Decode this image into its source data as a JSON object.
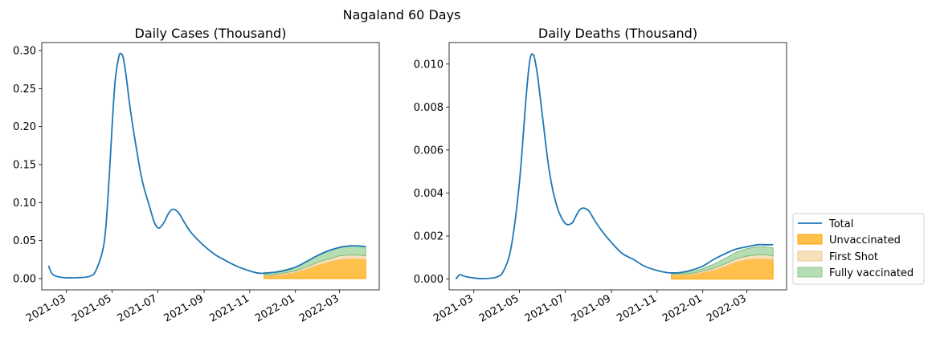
{
  "suptitle": "Nagaland 60 Days",
  "legend": {
    "placement": "right",
    "entries": [
      {
        "label": "Total",
        "kind": "line",
        "color": "#1f77b4"
      },
      {
        "label": "Unvaccinated",
        "kind": "patch",
        "color": "#ffa500",
        "alpha": 0.7
      },
      {
        "label": "First Shot",
        "kind": "patch",
        "color": "#f5deb3",
        "alpha": 0.9
      },
      {
        "label": "Fully vaccinated",
        "kind": "patch",
        "color": "#2ca02c",
        "alpha": 0.35
      }
    ]
  },
  "chart_data": [
    {
      "type": "area",
      "title": "Daily Cases (Thousand)",
      "xlabel": "",
      "ylabel": "",
      "grid": false,
      "x_ticks": [
        "2021-03",
        "2021-05",
        "2021-07",
        "2021-09",
        "2021-11",
        "2022-01",
        "2022-03"
      ],
      "y_ticks": [
        "0.00",
        "0.05",
        "0.10",
        "0.15",
        "0.20",
        "0.25",
        "0.30"
      ],
      "xlim": [
        "2021-01-27",
        "2022-04-23"
      ],
      "ylim": [
        -0.0148,
        0.3106
      ],
      "series": [
        {
          "name": "Total",
          "type": "line",
          "x": [
            "2021-02-05",
            "2021-02-10",
            "2021-02-20",
            "2021-03-10",
            "2021-04-01",
            "2021-04-10",
            "2021-04-20",
            "2021-04-25",
            "2021-05-01",
            "2021-05-05",
            "2021-05-10",
            "2021-05-13",
            "2021-05-16",
            "2021-05-20",
            "2021-05-25",
            "2021-06-01",
            "2021-06-10",
            "2021-06-20",
            "2021-06-26",
            "2021-07-01",
            "2021-07-05",
            "2021-07-10",
            "2021-07-15",
            "2021-07-20",
            "2021-07-25",
            "2021-07-30",
            "2021-08-05",
            "2021-08-15",
            "2021-09-01",
            "2021-09-15",
            "2021-10-01",
            "2021-10-15",
            "2021-11-01",
            "2021-11-15",
            "2021-12-01",
            "2021-12-15",
            "2022-01-01",
            "2022-01-15",
            "2022-02-01",
            "2022-02-15",
            "2022-03-01",
            "2022-03-15",
            "2022-03-25",
            "2022-04-05"
          ],
          "values": [
            0.017,
            0.006,
            0.002,
            0.001,
            0.003,
            0.012,
            0.045,
            0.1,
            0.2,
            0.26,
            0.292,
            0.296,
            0.29,
            0.265,
            0.225,
            0.18,
            0.13,
            0.095,
            0.075,
            0.067,
            0.068,
            0.075,
            0.085,
            0.091,
            0.09,
            0.085,
            0.075,
            0.06,
            0.043,
            0.032,
            0.023,
            0.016,
            0.01,
            0.007,
            0.008,
            0.01,
            0.015,
            0.022,
            0.031,
            0.037,
            0.041,
            0.043,
            0.043,
            0.042
          ]
        },
        {
          "name": "Unvaccinated",
          "type": "area",
          "x": [
            "2021-11-20",
            "2021-12-01",
            "2021-12-15",
            "2022-01-01",
            "2022-01-15",
            "2022-02-01",
            "2022-02-15",
            "2022-03-01",
            "2022-03-15",
            "2022-03-25",
            "2022-04-05"
          ],
          "values": [
            0.004,
            0.004,
            0.005,
            0.008,
            0.012,
            0.018,
            0.022,
            0.025,
            0.026,
            0.026,
            0.025
          ]
        },
        {
          "name": "First Shot",
          "type": "area",
          "x": [
            "2021-11-20",
            "2021-12-01",
            "2021-12-15",
            "2022-01-01",
            "2022-01-15",
            "2022-02-01",
            "2022-02-15",
            "2022-03-01",
            "2022-03-15",
            "2022-03-25",
            "2022-04-05"
          ],
          "values": [
            0.001,
            0.001,
            0.002,
            0.002,
            0.003,
            0.004,
            0.004,
            0.005,
            0.005,
            0.005,
            0.005
          ]
        },
        {
          "name": "Fully vaccinated",
          "type": "area",
          "x": [
            "2021-11-20",
            "2021-12-01",
            "2021-12-15",
            "2022-01-01",
            "2022-01-15",
            "2022-02-01",
            "2022-02-15",
            "2022-03-01",
            "2022-03-15",
            "2022-03-25",
            "2022-04-05"
          ],
          "values": [
            0.003,
            0.003,
            0.004,
            0.005,
            0.007,
            0.009,
            0.011,
            0.011,
            0.012,
            0.012,
            0.012
          ]
        }
      ]
    },
    {
      "type": "area",
      "title": "Daily Deaths (Thousand)",
      "xlabel": "",
      "ylabel": "",
      "grid": false,
      "x_ticks": [
        "2021-03",
        "2021-05",
        "2021-07",
        "2021-09",
        "2021-11",
        "2022-01",
        "2022-03"
      ],
      "y_ticks": [
        "0.000",
        "0.002",
        "0.004",
        "0.006",
        "0.008",
        "0.010"
      ],
      "xlim": [
        "2021-01-27",
        "2022-04-23"
      ],
      "ylim": [
        -0.0005,
        0.011
      ],
      "series": [
        {
          "name": "Total",
          "type": "line",
          "x": [
            "2021-02-05",
            "2021-02-10",
            "2021-02-15",
            "2021-02-20",
            "2021-03-01",
            "2021-03-15",
            "2021-04-01",
            "2021-04-10",
            "2021-04-20",
            "2021-05-01",
            "2021-05-10",
            "2021-05-15",
            "2021-05-20",
            "2021-05-25",
            "2021-06-01",
            "2021-06-10",
            "2021-06-20",
            "2021-07-01",
            "2021-07-10",
            "2021-07-15",
            "2021-07-20",
            "2021-07-25",
            "2021-08-01",
            "2021-08-05",
            "2021-08-10",
            "2021-08-20",
            "2021-09-01",
            "2021-09-15",
            "2021-10-01",
            "2021-10-15",
            "2021-11-01",
            "2021-11-15",
            "2021-12-01",
            "2021-12-15",
            "2022-01-01",
            "2022-01-15",
            "2022-02-01",
            "2022-02-15",
            "2022-03-01",
            "2022-03-15",
            "2022-03-25",
            "2022-04-05"
          ],
          "values": [
            0.0,
            0.0002,
            0.00015,
            0.0001,
            5e-05,
            2e-05,
            0.0001,
            0.0004,
            0.0015,
            0.0045,
            0.0085,
            0.0102,
            0.0104,
            0.0095,
            0.0075,
            0.005,
            0.0034,
            0.0026,
            0.0026,
            0.0029,
            0.0032,
            0.0033,
            0.0032,
            0.003,
            0.0027,
            0.0022,
            0.0017,
            0.0012,
            0.0009,
            0.0006,
            0.0004,
            0.0003,
            0.0003,
            0.0004,
            0.0006,
            0.0009,
            0.0012,
            0.0014,
            0.0015,
            0.0016,
            0.0016,
            0.0016
          ]
        },
        {
          "name": "Unvaccinated",
          "type": "area",
          "x": [
            "2021-11-20",
            "2021-12-01",
            "2021-12-15",
            "2022-01-01",
            "2022-01-15",
            "2022-02-01",
            "2022-02-15",
            "2022-03-01",
            "2022-03-15",
            "2022-03-25",
            "2022-04-05"
          ],
          "values": [
            0.0002,
            0.0002,
            0.0002,
            0.0003,
            0.0004,
            0.0006,
            0.0008,
            0.0009,
            0.00095,
            0.00095,
            0.0009
          ]
        },
        {
          "name": "First Shot",
          "type": "area",
          "x": [
            "2021-11-20",
            "2021-12-01",
            "2021-12-15",
            "2022-01-01",
            "2022-01-15",
            "2022-02-01",
            "2022-02-15",
            "2022-03-01",
            "2022-03-15",
            "2022-03-25",
            "2022-04-05"
          ],
          "values": [
            3e-05,
            4e-05,
            5e-05,
            7e-05,
            0.0001,
            0.00013,
            0.00015,
            0.00017,
            0.00018,
            0.00018,
            0.00018
          ]
        },
        {
          "name": "Fully vaccinated",
          "type": "area",
          "x": [
            "2021-11-20",
            "2021-12-01",
            "2021-12-15",
            "2022-01-01",
            "2022-01-15",
            "2022-02-01",
            "2022-02-15",
            "2022-03-01",
            "2022-03-15",
            "2022-03-25",
            "2022-04-05"
          ],
          "values": [
            7e-05,
            6e-05,
            8e-05,
            0.00012,
            0.00018,
            0.00025,
            0.0003,
            0.00035,
            0.00037,
            0.00037,
            0.00037
          ]
        }
      ]
    }
  ]
}
